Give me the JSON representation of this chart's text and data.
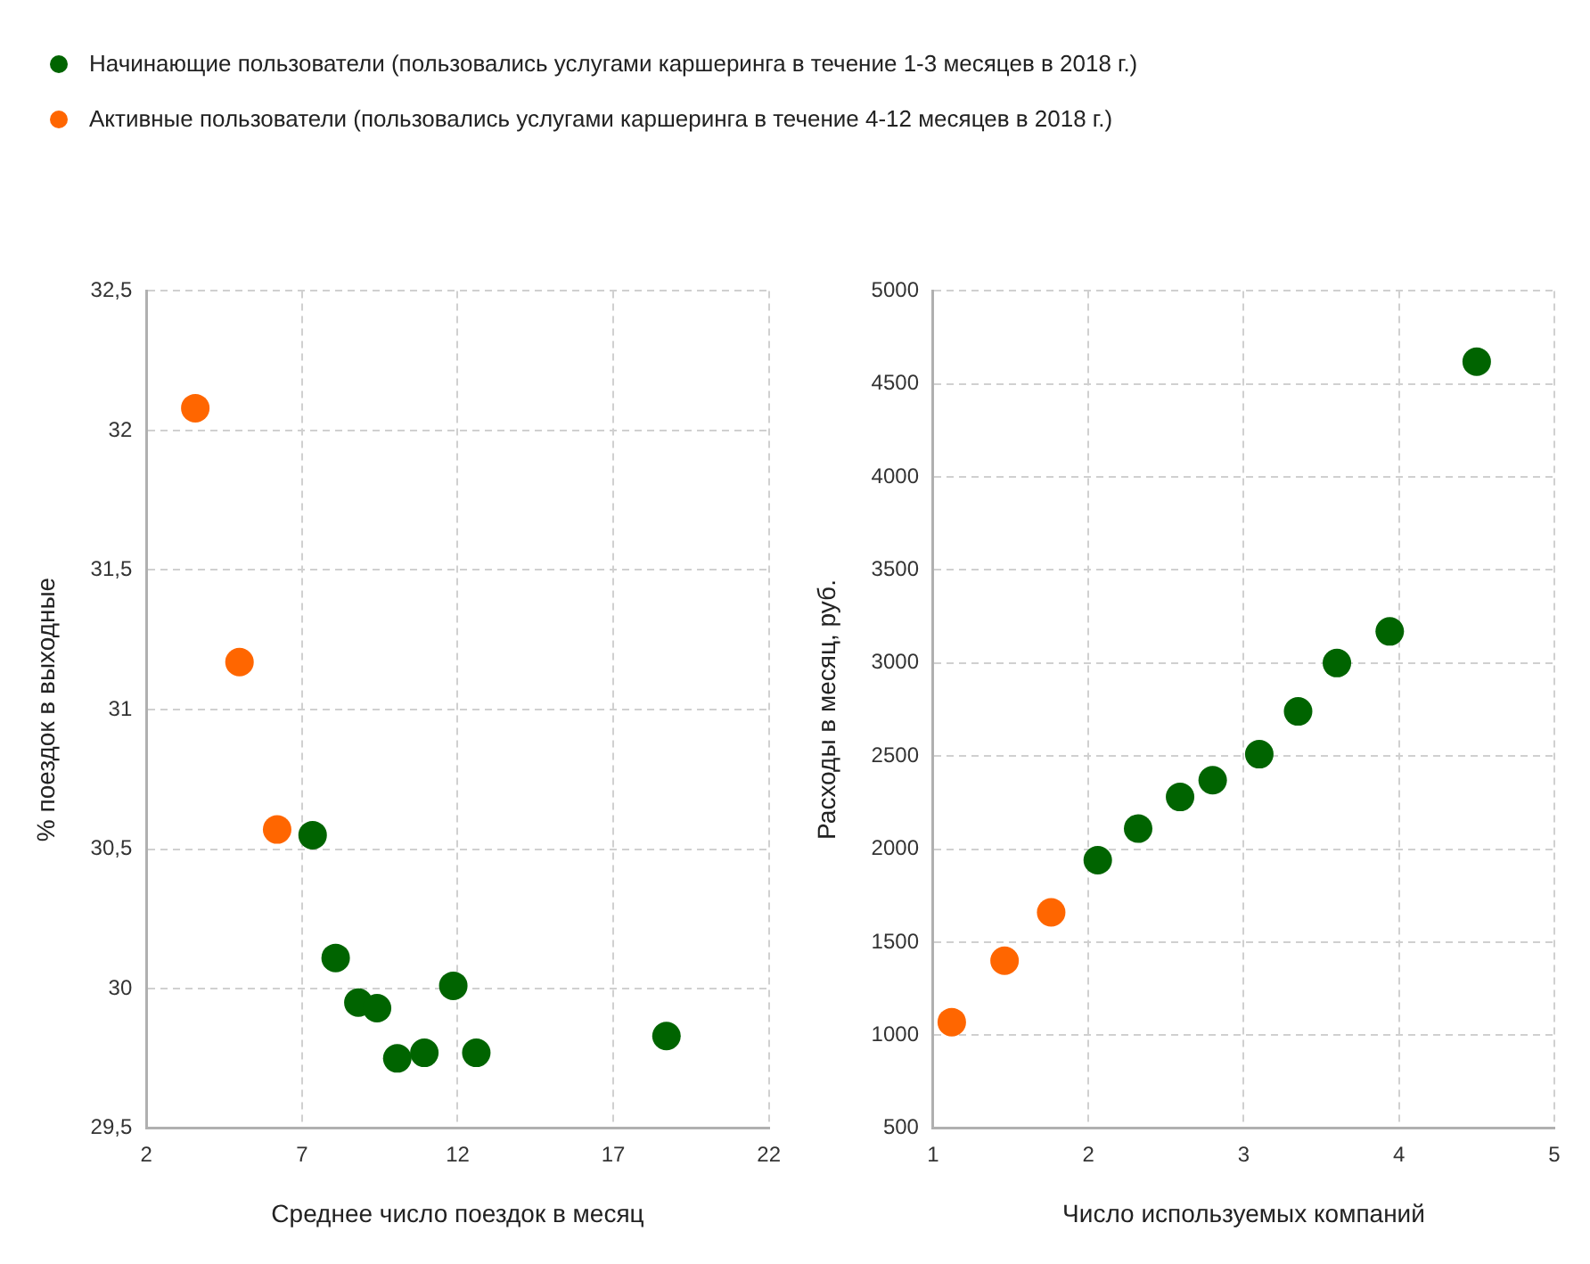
{
  "chart_data": [
    {
      "type": "scatter",
      "xlabel": "Среднее число поездок в месяц",
      "ylabel": "% поездок в выходные",
      "xlim": [
        2,
        22
      ],
      "xticks": [
        2,
        7,
        12,
        17,
        22
      ],
      "ylim": [
        29.5,
        32.5
      ],
      "yticks": [
        {
          "value": 29.5,
          "label": "29,5"
        },
        30,
        {
          "value": 30.5,
          "label": "30,5"
        },
        31,
        {
          "value": 31.5,
          "label": "31,5"
        },
        32,
        {
          "value": 32.5,
          "label": "32,5"
        }
      ],
      "grid": true,
      "legend": "top",
      "marker": "circle",
      "series": [
        {
          "name": "Начинающие пользователи (пользовались услугами каршеринга в течение 1-3 месяцев в 2018 г.)",
          "color": "#006400",
          "x": [
            7.34,
            8.08,
            8.81,
            9.41,
            10.06,
            10.93,
            11.86,
            12.6,
            18.71
          ],
          "values": [
            30.55,
            30.11,
            29.95,
            29.93,
            29.75,
            29.77,
            30.01,
            29.77,
            29.83
          ]
        },
        {
          "name": "Активные пользователи (пользовались услугами каршеринга в течение 4-12 месяцев в 2018 г.)",
          "color": "#ff6600",
          "x": [
            3.57,
            4.99,
            6.2
          ],
          "values": [
            32.08,
            31.17,
            30.57
          ]
        }
      ]
    },
    {
      "type": "scatter",
      "xlabel": "Число используемых компаний",
      "ylabel": "Расходы в месяц, руб.",
      "xlim": [
        1,
        5
      ],
      "xticks": [
        1,
        2,
        3,
        4,
        5
      ],
      "ylim": [
        500,
        5000
      ],
      "yticks": [
        500,
        1000,
        1500,
        2000,
        2500,
        3000,
        3500,
        4000,
        4500,
        5000
      ],
      "grid": true,
      "marker": "circle",
      "series": [
        {
          "color": "#006400",
          "x": [
            2.06,
            2.32,
            2.59,
            2.8,
            3.1,
            3.35,
            3.6,
            3.94,
            4.5
          ],
          "values": [
            1940,
            2110,
            2280,
            2370,
            2510,
            2740,
            3000,
            3170,
            4620
          ]
        },
        {
          "color": "#ff6600",
          "x": [
            1.12,
            1.46,
            1.76
          ],
          "values": [
            1070,
            1400,
            1660
          ]
        }
      ]
    }
  ]
}
